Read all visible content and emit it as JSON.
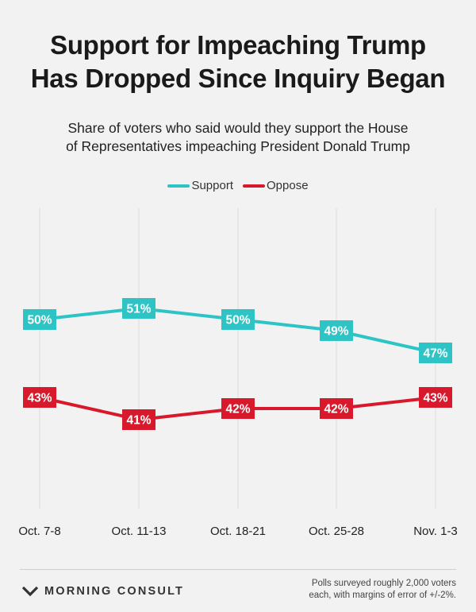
{
  "header": {
    "title_line1": "Support for Impeaching Trump",
    "title_line2": "Has Dropped Since Inquiry Began",
    "subtitle_line1": "Share of voters who said would they support the House",
    "subtitle_line2": "of Representatives impeaching President Donald Trump"
  },
  "legend": {
    "support_label": "Support",
    "oppose_label": "Oppose"
  },
  "colors": {
    "support": "#2ec4c6",
    "oppose": "#d8192b",
    "gridline": "#dcdcdc",
    "background": "#f2f2f2"
  },
  "chart_data": {
    "type": "line",
    "title": "Support for Impeaching Trump Has Dropped Since Inquiry Began",
    "subtitle": "Share of voters who said would they support the House of Representatives impeaching President Donald Trump",
    "categories": [
      "Oct. 7-8",
      "Oct. 11-13",
      "Oct. 18-21",
      "Oct. 25-28",
      "Nov. 1-3"
    ],
    "series": [
      {
        "name": "Support",
        "values": [
          50,
          51,
          50,
          49,
          47
        ],
        "labels": [
          "50%",
          "51%",
          "50%",
          "49%",
          "47%"
        ]
      },
      {
        "name": "Oppose",
        "values": [
          43,
          41,
          42,
          42,
          43
        ],
        "labels": [
          "43%",
          "41%",
          "42%",
          "42%",
          "43%"
        ]
      }
    ],
    "ylim": [
      33,
      60
    ],
    "grid": "vertical",
    "legend_position": "top-center",
    "xlabel": "",
    "ylabel": ""
  },
  "footer": {
    "logo_text": "MORNING CONSULT",
    "note_line1": "Polls surveyed roughly 2,000 voters",
    "note_line2": "each, with margins of error of +/-2%."
  }
}
